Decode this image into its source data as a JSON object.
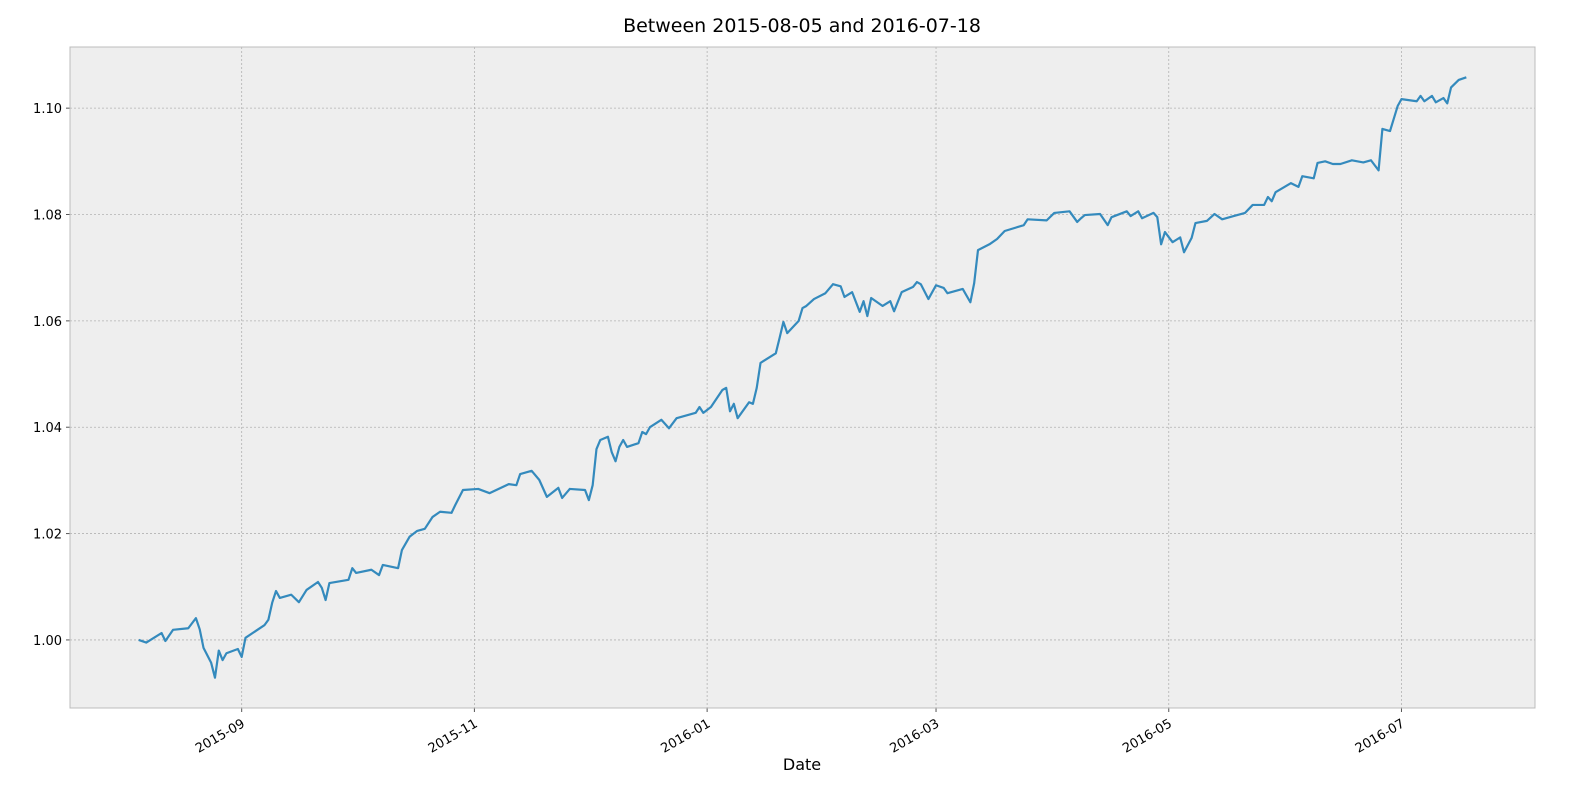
{
  "chart_data": {
    "type": "line",
    "title": "Between 2015-08-05 and 2016-07-18",
    "xlabel": "Date",
    "x": [
      "2015-08-05",
      "2015-08-07",
      "2015-08-11",
      "2015-08-12",
      "2015-08-14",
      "2015-08-18",
      "2015-08-20",
      "2015-08-21",
      "2015-08-22",
      "2015-08-24",
      "2015-08-25",
      "2015-08-26",
      "2015-08-27",
      "2015-08-28",
      "2015-08-31",
      "2015-09-01",
      "2015-09-02",
      "2015-09-07",
      "2015-09-08",
      "2015-09-09",
      "2015-09-10",
      "2015-09-11",
      "2015-09-14",
      "2015-09-16",
      "2015-09-18",
      "2015-09-21",
      "2015-09-22",
      "2015-09-23",
      "2015-09-24",
      "2015-09-29",
      "2015-09-30",
      "2015-10-01",
      "2015-10-05",
      "2015-10-07",
      "2015-10-08",
      "2015-10-12",
      "2015-10-13",
      "2015-10-15",
      "2015-10-17",
      "2015-10-19",
      "2015-10-21",
      "2015-10-23",
      "2015-10-26",
      "2015-10-27",
      "2015-10-29",
      "2015-11-02",
      "2015-11-05",
      "2015-11-10",
      "2015-11-12",
      "2015-11-13",
      "2015-11-16",
      "2015-11-18",
      "2015-11-20",
      "2015-11-23",
      "2015-11-24",
      "2015-11-26",
      "2015-11-30",
      "2015-12-01",
      "2015-12-02",
      "2015-12-03",
      "2015-12-04",
      "2015-12-06",
      "2015-12-07",
      "2015-12-08",
      "2015-12-09",
      "2015-12-10",
      "2015-12-11",
      "2015-12-14",
      "2015-12-15",
      "2015-12-16",
      "2015-12-17",
      "2015-12-20",
      "2015-12-22",
      "2015-12-24",
      "2015-12-29",
      "2015-12-30",
      "2015-12-31",
      "2016-01-02",
      "2016-01-05",
      "2016-01-06",
      "2016-01-07",
      "2016-01-08",
      "2016-01-09",
      "2016-01-12",
      "2016-01-13",
      "2016-01-14",
      "2016-01-15",
      "2016-01-19",
      "2016-01-20",
      "2016-01-21",
      "2016-01-22",
      "2016-01-25",
      "2016-01-26",
      "2016-01-27",
      "2016-01-29",
      "2016-02-01",
      "2016-02-03",
      "2016-02-05",
      "2016-02-06",
      "2016-02-08",
      "2016-02-10",
      "2016-02-11",
      "2016-02-12",
      "2016-02-13",
      "2016-02-16",
      "2016-02-18",
      "2016-02-19",
      "2016-02-21",
      "2016-02-24",
      "2016-02-25",
      "2016-02-26",
      "2016-02-28",
      "2016-03-01",
      "2016-03-03",
      "2016-03-04",
      "2016-03-08",
      "2016-03-10",
      "2016-03-11",
      "2016-03-12",
      "2016-03-15",
      "2016-03-17",
      "2016-03-19",
      "2016-03-24",
      "2016-03-25",
      "2016-03-30",
      "2016-04-01",
      "2016-04-05",
      "2016-04-07",
      "2016-04-08",
      "2016-04-09",
      "2016-04-13",
      "2016-04-15",
      "2016-04-16",
      "2016-04-20",
      "2016-04-21",
      "2016-04-23",
      "2016-04-24",
      "2016-04-27",
      "2016-04-28",
      "2016-04-29",
      "2016-04-30",
      "2016-05-02",
      "2016-05-04",
      "2016-05-05",
      "2016-05-07",
      "2016-05-08",
      "2016-05-11",
      "2016-05-13",
      "2016-05-15",
      "2016-05-18",
      "2016-05-21",
      "2016-05-23",
      "2016-05-26",
      "2016-05-27",
      "2016-05-28",
      "2016-05-29",
      "2016-06-02",
      "2016-06-04",
      "2016-06-05",
      "2016-06-08",
      "2016-06-09",
      "2016-06-11",
      "2016-06-13",
      "2016-06-15",
      "2016-06-18",
      "2016-06-21",
      "2016-06-23",
      "2016-06-25",
      "2016-06-26",
      "2016-06-28",
      "2016-06-30",
      "2016-07-01",
      "2016-07-05",
      "2016-07-06",
      "2016-07-07",
      "2016-07-09",
      "2016-07-10",
      "2016-07-12",
      "2016-07-13",
      "2016-07-14",
      "2016-07-16",
      "2016-07-18"
    ],
    "series": [
      {
        "color": "#348ABD",
        "values": [
          1.0,
          0.9995,
          1.0013,
          0.9998,
          1.0019,
          1.0022,
          1.0041,
          1.002,
          0.9985,
          0.9957,
          0.9929,
          0.998,
          0.9962,
          0.9975,
          0.9983,
          0.9968,
          1.0004,
          1.0028,
          1.0038,
          1.007,
          1.0092,
          1.0079,
          1.0085,
          1.0071,
          1.0094,
          1.0109,
          1.0098,
          1.0075,
          1.0107,
          1.0113,
          1.0135,
          1.0126,
          1.0132,
          1.0122,
          1.0141,
          1.0135,
          1.0169,
          1.0194,
          1.0205,
          1.0209,
          1.0231,
          1.0241,
          1.0239,
          1.0254,
          1.0282,
          1.0284,
          1.0276,
          1.0293,
          1.0291,
          1.0312,
          1.0318,
          1.0301,
          1.0269,
          1.0286,
          1.0267,
          1.0284,
          1.0282,
          1.0263,
          1.0291,
          1.0359,
          1.0376,
          1.0382,
          1.0353,
          1.0336,
          1.0363,
          1.0376,
          1.0363,
          1.037,
          1.0391,
          1.0387,
          1.04,
          1.0414,
          1.0398,
          1.0417,
          1.0427,
          1.0438,
          1.0427,
          1.0438,
          1.047,
          1.0474,
          1.043,
          1.0444,
          1.0417,
          1.0447,
          1.0444,
          1.0474,
          1.0521,
          1.0539,
          1.0568,
          1.0598,
          1.0577,
          1.06,
          1.0624,
          1.0628,
          1.0641,
          1.0652,
          1.0669,
          1.0665,
          1.0645,
          1.0654,
          1.0617,
          1.0637,
          1.0609,
          1.0643,
          1.0628,
          1.0637,
          1.0618,
          1.0654,
          1.0664,
          1.0673,
          1.0669,
          1.0641,
          1.0667,
          1.0662,
          1.0652,
          1.066,
          1.0635,
          1.0671,
          1.0733,
          1.0744,
          1.0754,
          1.0769,
          1.078,
          1.0791,
          1.0789,
          1.0803,
          1.0806,
          1.0786,
          1.0793,
          1.0799,
          1.0801,
          1.078,
          1.0795,
          1.0806,
          1.0797,
          1.0806,
          1.0793,
          1.0803,
          1.0795,
          1.0744,
          1.0767,
          1.0748,
          1.0757,
          1.0729,
          1.0756,
          1.0784,
          1.0788,
          1.0801,
          1.0791,
          1.0797,
          1.0803,
          1.0818,
          1.0818,
          1.0833,
          1.0825,
          1.0842,
          1.0859,
          1.0852,
          1.0872,
          1.0868,
          1.0897,
          1.09,
          1.0895,
          1.0895,
          1.0902,
          1.0898,
          1.0902,
          1.0883,
          1.0961,
          1.0957,
          1.1004,
          1.1017,
          1.1013,
          1.1023,
          1.1013,
          1.1023,
          1.1011,
          1.1019,
          1.1009,
          1.1039,
          1.1053,
          1.1058
        ]
      }
    ],
    "xlim": [
      "2015-07-18",
      "2016-08-05"
    ],
    "xticks": [
      {
        "value": "2015-09-01",
        "label": "2015-09"
      },
      {
        "value": "2015-11-01",
        "label": "2015-11"
      },
      {
        "value": "2016-01-01",
        "label": "2016-01"
      },
      {
        "value": "2016-03-01",
        "label": "2016-03"
      },
      {
        "value": "2016-05-01",
        "label": "2016-05"
      },
      {
        "value": "2016-07-01",
        "label": "2016-07"
      }
    ],
    "ylim": [
      0.9872,
      1.1115
    ],
    "yticks": [
      {
        "value": 1,
        "label": "1.00"
      },
      1.02,
      1.04,
      1.06,
      1.08,
      {
        "value": 1.1,
        "label": "1.10"
      }
    ],
    "grid": true
  }
}
